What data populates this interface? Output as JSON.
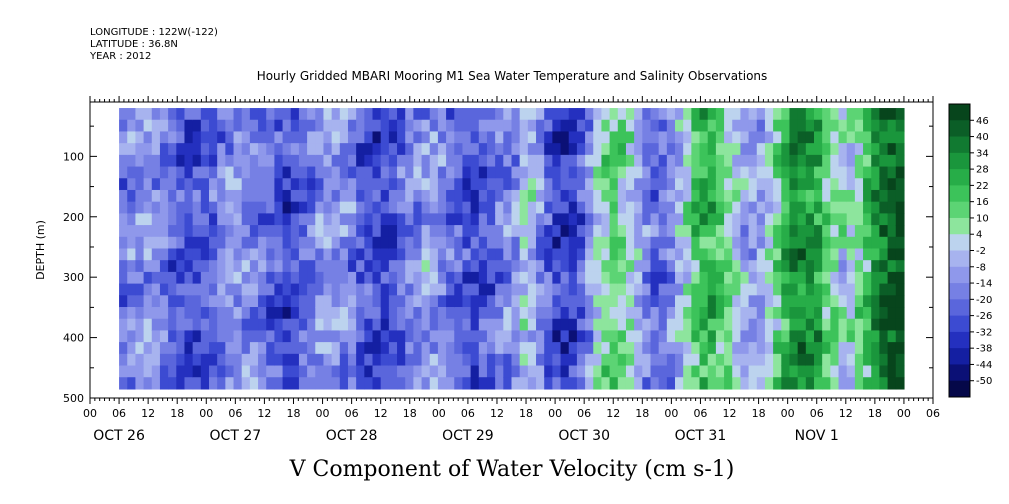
{
  "header": {
    "longitude": "LONGITUDE : 122W(-122)",
    "latitude": "LATITUDE : 36.8N",
    "year": "YEAR : 2012"
  },
  "chart_data": {
    "type": "heatmap",
    "title": "Hourly Gridded MBARI Mooring M1 Sea Water Temperature and Salinity Observations",
    "xlabel": "V Component of Water Velocity (cm s-1)",
    "ylabel": "DEPTH (m)",
    "ylim": [
      500,
      10
    ],
    "y_ticks": [
      100,
      200,
      300,
      400,
      500
    ],
    "hour_ticks": [
      "00",
      "06",
      "12",
      "18"
    ],
    "day_labels": [
      "OCT 26",
      "OCT 27",
      "OCT 28",
      "OCT 29",
      "OCT 30",
      "OCT 31",
      "NOV  1"
    ],
    "data_start_hour": 6,
    "data_end_hour": 168,
    "colorbar": {
      "levels": [
        46,
        40,
        34,
        28,
        22,
        16,
        10,
        4,
        -2,
        -8,
        -14,
        -20,
        -26,
        -32,
        -38,
        -44,
        -50
      ],
      "colors": [
        "#07451c",
        "#0b5e27",
        "#117a31",
        "#1a963c",
        "#27ad48",
        "#3cc35a",
        "#5cd474",
        "#8de59d",
        "#bcd3ee",
        "#a7b3ef",
        "#8f98eb",
        "#7680e4",
        "#5a66dc",
        "#3c4bd2",
        "#2430bf",
        "#141fa2",
        "#0b1076",
        "#050849"
      ],
      "min": -50,
      "max": 50
    },
    "field": {
      "rows": 24,
      "cols": 96,
      "description_of_pattern": "mostly negative (blue) Oct 26-29, mixed strong positive (green) bands Oct 30-Nov 1"
    }
  }
}
